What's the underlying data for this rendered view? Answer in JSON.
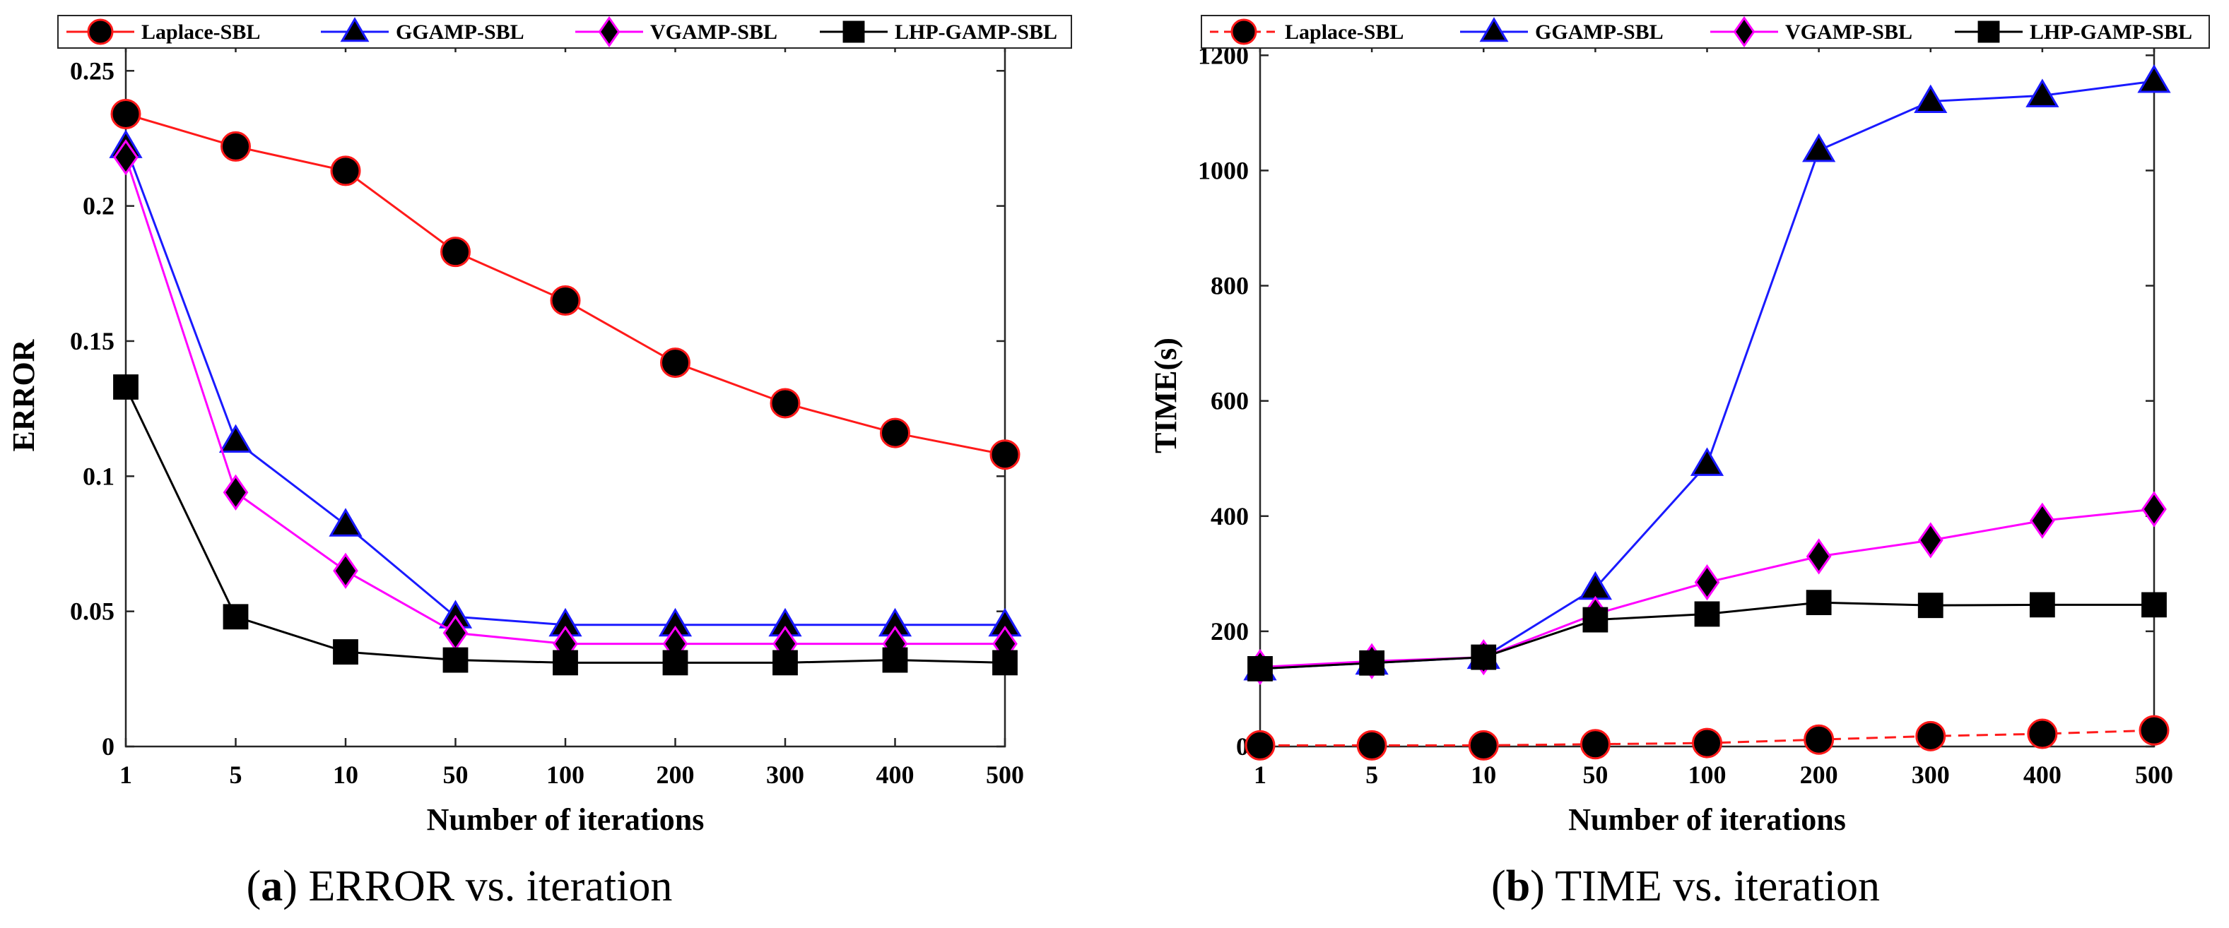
{
  "chart_data": [
    {
      "type": "line",
      "id": "a",
      "caption": {
        "label": "a",
        "text": " ERROR vs. iteration"
      },
      "title": "",
      "xlabel": "Number of iterations",
      "ylabel": "ERROR",
      "categories": [
        "1",
        "5",
        "10",
        "50",
        "100",
        "200",
        "300",
        "400",
        "500"
      ],
      "ylim": [
        0,
        0.26
      ],
      "yticks": [
        0,
        0.05,
        0.1,
        0.15,
        0.2,
        0.25
      ],
      "ytick_labels": [
        "0",
        "0.05",
        "0.1",
        "0.15",
        "0.2",
        "0.25"
      ],
      "series": [
        {
          "name": "Laplace-SBL",
          "color": "#ff1a1a",
          "face": "#000000",
          "marker": "circle",
          "dash": "solid",
          "values": [
            0.234,
            0.222,
            0.213,
            0.183,
            0.165,
            0.142,
            0.127,
            0.116,
            0.108
          ]
        },
        {
          "name": "GGAMP-SBL",
          "color": "#1a1aff",
          "face": "#000000",
          "marker": "triangle",
          "dash": "solid",
          "values": [
            0.222,
            0.113,
            0.082,
            0.048,
            0.045,
            0.045,
            0.045,
            0.045,
            0.045
          ]
        },
        {
          "name": "VGAMP-SBL",
          "color": "#ff00ff",
          "face": "#000000",
          "marker": "diamond",
          "dash": "solid",
          "values": [
            0.218,
            0.094,
            0.065,
            0.042,
            0.038,
            0.038,
            0.038,
            0.038,
            0.038
          ]
        },
        {
          "name": "LHP-GAMP-SBL",
          "color": "#000000",
          "face": "#000000",
          "marker": "square",
          "dash": "solid",
          "values": [
            0.133,
            0.048,
            0.035,
            0.032,
            0.031,
            0.031,
            0.031,
            0.032,
            0.031
          ]
        }
      ],
      "legend": "top"
    },
    {
      "type": "line",
      "id": "b",
      "caption": {
        "label": "b",
        "text": " TIME vs. iteration"
      },
      "title": "",
      "xlabel": "Number of iterations",
      "ylabel": "TIME(s)",
      "categories": [
        "1",
        "5",
        "10",
        "50",
        "100",
        "200",
        "300",
        "400",
        "500"
      ],
      "ylim": [
        0,
        1220
      ],
      "yticks": [
        0,
        200,
        400,
        600,
        800,
        1000,
        1200
      ],
      "ytick_labels": [
        "0",
        "200",
        "400",
        "600",
        "800",
        "1000",
        "1200"
      ],
      "series": [
        {
          "name": "Laplace-SBL",
          "color": "#ff1a1a",
          "face": "#000000",
          "marker": "circle",
          "dash": "dashed",
          "values": [
            2,
            2,
            2,
            4,
            6,
            12,
            18,
            22,
            28
          ]
        },
        {
          "name": "GGAMP-SBL",
          "color": "#1a1aff",
          "face": "#000000",
          "marker": "triangle",
          "dash": "solid",
          "values": [
            135,
            145,
            155,
            275,
            490,
            1035,
            1120,
            1130,
            1155
          ]
        },
        {
          "name": "VGAMP-SBL",
          "color": "#ff00ff",
          "face": "#000000",
          "marker": "diamond",
          "dash": "solid",
          "values": [
            138,
            148,
            155,
            230,
            285,
            330,
            358,
            392,
            412
          ]
        },
        {
          "name": "LHP-GAMP-SBL",
          "color": "#000000",
          "face": "#000000",
          "marker": "square",
          "dash": "solid",
          "values": [
            135,
            145,
            155,
            220,
            230,
            250,
            245,
            246,
            246
          ]
        }
      ],
      "legend": "top"
    }
  ]
}
